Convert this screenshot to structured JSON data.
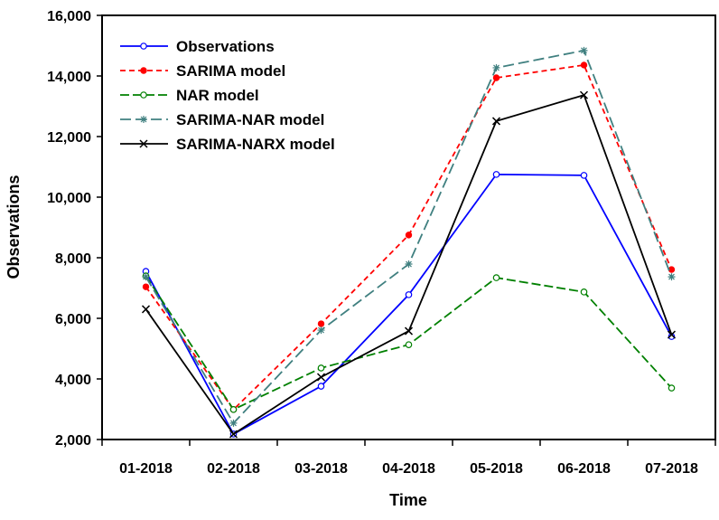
{
  "chart_data": {
    "type": "line",
    "title": "",
    "xlabel": "Time",
    "ylabel": "Observations",
    "categories": [
      "01-2018",
      "02-2018",
      "03-2018",
      "04-2018",
      "05-2018",
      "06-2018",
      "07-2018"
    ],
    "ylim": [
      2000,
      16000
    ],
    "yticks": [
      2000,
      4000,
      6000,
      8000,
      10000,
      12000,
      14000,
      16000
    ],
    "ytick_labels": [
      "2,000",
      "4,000",
      "6,000",
      "8,000",
      "10,000",
      "12,000",
      "14,000",
      "16,000"
    ],
    "grid": false,
    "legend_position": "top-left",
    "series": [
      {
        "name": "Observations",
        "color": "#0000ff",
        "dash": "",
        "marker": "open-circle",
        "values": [
          7550,
          2180,
          3760,
          6780,
          10750,
          10720,
          5400
        ]
      },
      {
        "name": "SARIMA model",
        "color": "#ff0000",
        "dash": "6,4",
        "marker": "filled-circle",
        "values": [
          7040,
          2990,
          5820,
          8750,
          13940,
          14360,
          7610
        ]
      },
      {
        "name": "NAR model",
        "color": "#008000",
        "dash": "10,4",
        "marker": "open-circle",
        "values": [
          7400,
          2990,
          4360,
          5130,
          7340,
          6870,
          3700
        ]
      },
      {
        "name": "SARIMA-NAR model",
        "color": "#408080",
        "dash": "12,5",
        "marker": "asterisk",
        "values": [
          7370,
          2540,
          5610,
          7790,
          14270,
          14840,
          7370
        ]
      },
      {
        "name": "SARIMA-NARX model",
        "color": "#000000",
        "dash": "",
        "marker": "x",
        "values": [
          6300,
          2180,
          4060,
          5580,
          12510,
          13370,
          5460
        ]
      }
    ]
  }
}
